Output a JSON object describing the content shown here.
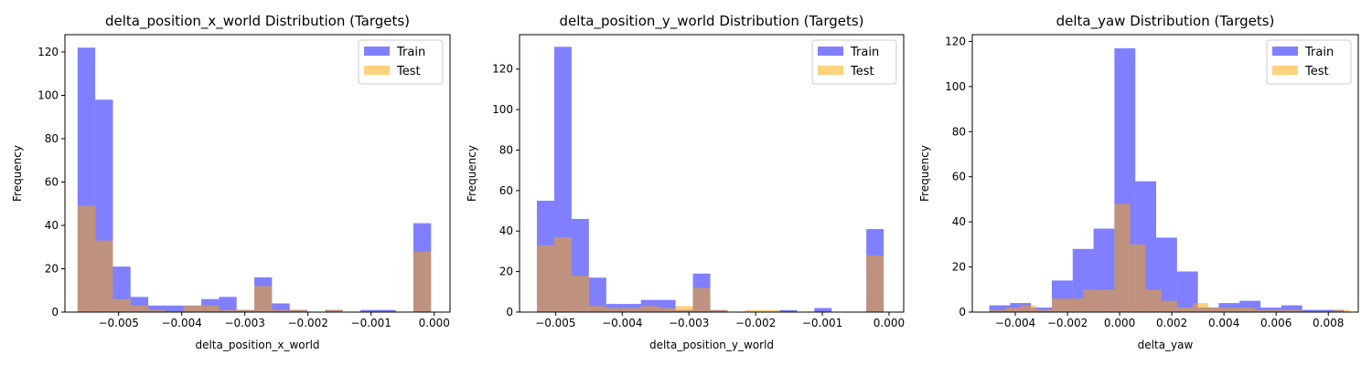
{
  "chart_data": [
    {
      "type": "histogram",
      "title": "delta_position_x_world Distribution (Targets)",
      "xlabel": "delta_position_x_world",
      "ylabel": "Frequency",
      "xlim": [
        -0.00585,
        0.00025
      ],
      "ylim": [
        0,
        128
      ],
      "xticks": [
        -0.005,
        -0.004,
        -0.003,
        -0.002,
        -0.001,
        0.0
      ],
      "xtick_labels": [
        "−0.005",
        "−0.004",
        "−0.003",
        "−0.002",
        "−0.001",
        "0.000"
      ],
      "yticks": [
        0,
        20,
        40,
        60,
        80,
        100,
        120
      ],
      "legend_loc": "top-right",
      "series": [
        {
          "name": "Train",
          "color": "#0000ff",
          "alpha": 0.5,
          "bins": [
            [
              -0.00565,
              -0.00537
            ],
            [
              -0.00537,
              -0.00509
            ],
            [
              -0.00509,
              -0.00481
            ],
            [
              -0.00481,
              -0.00453
            ],
            [
              -0.00453,
              -0.00425
            ],
            [
              -0.00425,
              -0.00397
            ],
            [
              -0.00397,
              -0.00369
            ],
            [
              -0.00369,
              -0.00341
            ],
            [
              -0.00341,
              -0.00313
            ],
            [
              -0.00313,
              -0.00285
            ],
            [
              -0.00285,
              -0.00257
            ],
            [
              -0.00257,
              -0.00229
            ],
            [
              -0.00229,
              -0.00201
            ],
            [
              -0.00201,
              -0.00173
            ],
            [
              -0.00173,
              -0.00145
            ],
            [
              -0.00145,
              -0.00117
            ],
            [
              -0.00117,
              -0.00089
            ],
            [
              -0.00089,
              -0.00061
            ],
            [
              -0.00061,
              -0.00033
            ],
            [
              -0.00033,
              -5e-05
            ]
          ],
          "counts": [
            122,
            98,
            21,
            7,
            3,
            3,
            3,
            6,
            7,
            1,
            16,
            4,
            1,
            0,
            1,
            0,
            1,
            1,
            0,
            41
          ]
        },
        {
          "name": "Test",
          "color": "#ffa500",
          "alpha": 0.5,
          "bins": [
            [
              -0.00565,
              -0.00537
            ],
            [
              -0.00537,
              -0.00509
            ],
            [
              -0.00509,
              -0.00481
            ],
            [
              -0.00481,
              -0.00453
            ],
            [
              -0.00453,
              -0.00425
            ],
            [
              -0.00425,
              -0.00397
            ],
            [
              -0.00397,
              -0.00369
            ],
            [
              -0.00369,
              -0.00341
            ],
            [
              -0.00341,
              -0.00313
            ],
            [
              -0.00313,
              -0.00285
            ],
            [
              -0.00285,
              -0.00257
            ],
            [
              -0.00257,
              -0.00229
            ],
            [
              -0.00229,
              -0.00201
            ],
            [
              -0.00201,
              -0.00173
            ],
            [
              -0.00173,
              -0.00145
            ],
            [
              -0.00145,
              -0.00117
            ],
            [
              -0.00117,
              -0.00089
            ],
            [
              -0.00089,
              -0.00061
            ],
            [
              -0.00061,
              -0.00033
            ],
            [
              -0.00033,
              -5e-05
            ]
          ],
          "counts": [
            49,
            33,
            6,
            3,
            1,
            0,
            3,
            3,
            1,
            1,
            12,
            1,
            1,
            0,
            1,
            0,
            0,
            0,
            0,
            28
          ]
        }
      ]
    },
    {
      "type": "histogram",
      "title": "delta_position_y_world Distribution (Targets)",
      "xlabel": "delta_position_y_world",
      "ylabel": "Frequency",
      "xlim": [
        -0.00554,
        0.00022
      ],
      "ylim": [
        0,
        137
      ],
      "xticks": [
        -0.005,
        -0.004,
        -0.003,
        -0.002,
        -0.001,
        0.0
      ],
      "xtick_labels": [
        "−0.005",
        "−0.004",
        "−0.003",
        "−0.002",
        "−0.001",
        "0.000"
      ],
      "yticks": [
        0,
        20,
        40,
        60,
        80,
        100,
        120
      ],
      "legend_loc": "top-right",
      "series": [
        {
          "name": "Train",
          "color": "#0000ff",
          "alpha": 0.5,
          "bins": [
            [
              -0.00528,
              -0.00502
            ],
            [
              -0.00502,
              -0.00476
            ],
            [
              -0.00476,
              -0.0045
            ],
            [
              -0.0045,
              -0.00424
            ],
            [
              -0.00424,
              -0.00398
            ],
            [
              -0.00398,
              -0.00372
            ],
            [
              -0.00372,
              -0.00346
            ],
            [
              -0.00346,
              -0.0032
            ],
            [
              -0.0032,
              -0.00294
            ],
            [
              -0.00294,
              -0.00268
            ],
            [
              -0.00268,
              -0.00242
            ],
            [
              -0.00242,
              -0.00216
            ],
            [
              -0.00216,
              -0.0019
            ],
            [
              -0.0019,
              -0.00164
            ],
            [
              -0.00164,
              -0.00138
            ],
            [
              -0.00138,
              -0.00112
            ],
            [
              -0.00112,
              -0.00086
            ],
            [
              -0.00086,
              -0.0006
            ],
            [
              -0.0006,
              -0.00034
            ],
            [
              -0.00034,
              -8e-05
            ]
          ],
          "counts": [
            55,
            131,
            46,
            17,
            4,
            4,
            6,
            6,
            1,
            19,
            1,
            0,
            0,
            0,
            1,
            0,
            2,
            0,
            0,
            41
          ]
        },
        {
          "name": "Test",
          "color": "#ffa500",
          "alpha": 0.5,
          "bins": [
            [
              -0.00528,
              -0.00502
            ],
            [
              -0.00502,
              -0.00476
            ],
            [
              -0.00476,
              -0.0045
            ],
            [
              -0.0045,
              -0.00424
            ],
            [
              -0.00424,
              -0.00398
            ],
            [
              -0.00398,
              -0.00372
            ],
            [
              -0.00372,
              -0.00346
            ],
            [
              -0.00346,
              -0.0032
            ],
            [
              -0.0032,
              -0.00294
            ],
            [
              -0.00294,
              -0.00268
            ],
            [
              -0.00268,
              -0.00242
            ],
            [
              -0.00242,
              -0.00216
            ],
            [
              -0.00216,
              -0.0019
            ],
            [
              -0.0019,
              -0.00164
            ],
            [
              -0.00164,
              -0.00138
            ],
            [
              -0.00138,
              -0.00112
            ],
            [
              -0.00112,
              -0.00086
            ],
            [
              -0.00086,
              -0.0006
            ],
            [
              -0.0006,
              -0.00034
            ],
            [
              -0.00034,
              -8e-05
            ]
          ],
          "counts": [
            33,
            37,
            18,
            3,
            2,
            2,
            3,
            2,
            3,
            12,
            1,
            0,
            1,
            1,
            0,
            0,
            0,
            0,
            0,
            28
          ]
        }
      ]
    },
    {
      "type": "histogram",
      "title": "delta_yaw Distribution (Targets)",
      "xlabel": "delta_yaw",
      "ylabel": "Frequency",
      "xlim": [
        -0.00565,
        0.00915
      ],
      "ylim": [
        0,
        123
      ],
      "xticks": [
        -0.004,
        -0.002,
        0.0,
        0.002,
        0.004,
        0.006,
        0.008
      ],
      "xtick_labels": [
        "−0.004",
        "−0.002",
        "0.000",
        "0.002",
        "0.004",
        "0.006",
        "0.008"
      ],
      "yticks": [
        0,
        20,
        40,
        60,
        80,
        100,
        120
      ],
      "legend_loc": "top-right",
      "series": [
        {
          "name": "Train",
          "color": "#0000ff",
          "alpha": 0.5,
          "bins": [
            [
              -0.005,
              -0.0042
            ],
            [
              -0.0042,
              -0.0034
            ],
            [
              -0.0034,
              -0.0026
            ],
            [
              -0.0026,
              -0.0018
            ],
            [
              -0.0018,
              -0.001
            ],
            [
              -0.001,
              -0.0002
            ],
            [
              -0.0002,
              0.0006
            ],
            [
              0.0006,
              0.0014
            ],
            [
              0.0014,
              0.0022
            ],
            [
              0.0022,
              0.003
            ],
            [
              0.003,
              0.0038
            ],
            [
              0.0038,
              0.0046
            ],
            [
              0.0046,
              0.0054
            ],
            [
              0.0054,
              0.0062
            ],
            [
              0.0062,
              0.007
            ],
            [
              0.007,
              0.0078
            ],
            [
              0.0078,
              0.0086
            ]
          ],
          "counts": [
            3,
            4,
            2,
            14,
            28,
            37,
            117,
            58,
            33,
            18,
            2,
            4,
            5,
            2,
            3,
            1,
            1
          ]
        },
        {
          "name": "Test",
          "color": "#ffa500",
          "alpha": 0.5,
          "bins": [
            [
              -0.005,
              -0.0044
            ],
            [
              -0.0044,
              -0.0038
            ],
            [
              -0.0038,
              -0.0032
            ],
            [
              -0.0032,
              -0.0026
            ],
            [
              -0.0026,
              -0.002
            ],
            [
              -0.002,
              -0.0014
            ],
            [
              -0.0014,
              -0.0008
            ],
            [
              -0.0008,
              -0.0002
            ],
            [
              -0.0002,
              0.0004
            ],
            [
              0.0004,
              0.001
            ],
            [
              0.001,
              0.0016
            ],
            [
              0.0016,
              0.0022
            ],
            [
              0.0022,
              0.0028
            ],
            [
              0.0028,
              0.0034
            ],
            [
              0.0034,
              0.004
            ],
            [
              0.004,
              0.0046
            ],
            [
              0.0046,
              0.0052
            ],
            [
              0.0052,
              0.0058
            ],
            [
              0.0058,
              0.0064
            ],
            [
              0.0064,
              0.007
            ],
            [
              0.007,
              0.0076
            ],
            [
              0.0076,
              0.0082
            ],
            [
              0.0082,
              0.0088
            ]
          ],
          "counts": [
            1,
            2,
            3,
            1,
            6,
            6,
            10,
            10,
            48,
            30,
            10,
            5,
            2,
            4,
            2,
            2,
            2,
            1,
            1,
            1,
            0,
            0,
            1
          ]
        }
      ]
    }
  ]
}
